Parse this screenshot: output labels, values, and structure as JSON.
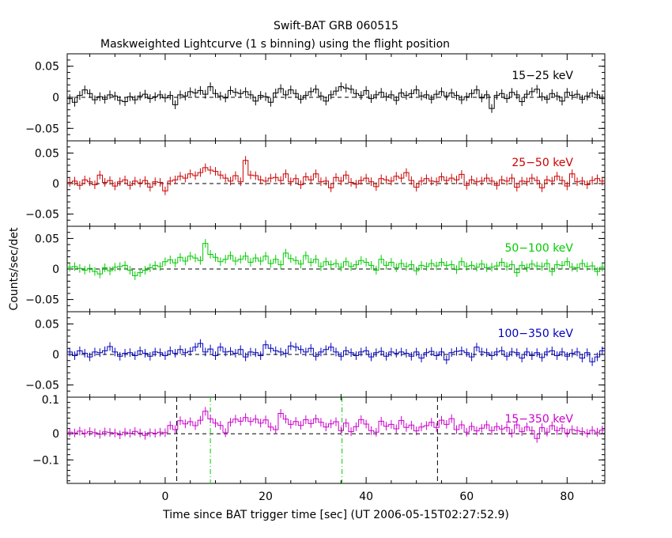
{
  "chart_data": {
    "type": "line",
    "title": "Swift-BAT GRB 060515",
    "subtitle": "Maskweighted Lightcurve (1 s binning) using the flight position",
    "xlabel": "Time since BAT trigger time [sec] (UT 2006-05-15T02:27:52.9)",
    "ylabel": "Counts/sec/det",
    "xlim": [
      -19.5,
      87.5
    ],
    "x_ticks": [
      0,
      20,
      40,
      60,
      80
    ],
    "x_tick_labels": [
      "0",
      "20",
      "40",
      "60",
      "80"
    ],
    "markers": [
      {
        "x": 2.3,
        "style": "dashed",
        "color": "#000000",
        "panel": 4
      },
      {
        "x": 54.2,
        "style": "dashed",
        "color": "#000000",
        "panel": 4
      },
      {
        "x": 9.0,
        "style": "dashdot",
        "color": "#00cc00",
        "panel": 4
      },
      {
        "x": 35.2,
        "style": "dashdot",
        "color": "#00cc00",
        "panel": 4
      }
    ],
    "panels": [
      {
        "name": "15-25 keV",
        "label": "15−25 keV",
        "color": "#000000",
        "ylim": [
          -0.07,
          0.07
        ],
        "ytick_values": [
          0.05,
          0,
          -0.05
        ],
        "ytick_labels": [
          "0.05",
          "0",
          "−0.05"
        ],
        "x": [
          -19,
          -18,
          -17,
          -16,
          -15,
          -14,
          -13,
          -12,
          -11,
          -10,
          -9,
          -8,
          -7,
          -6,
          -5,
          -4,
          -3,
          -2,
          -1,
          0,
          1,
          2,
          3,
          4,
          5,
          6,
          7,
          8,
          9,
          10,
          11,
          12,
          13,
          14,
          15,
          16,
          17,
          18,
          19,
          20,
          21,
          22,
          23,
          24,
          25,
          26,
          27,
          28,
          29,
          30,
          31,
          32,
          33,
          34,
          35,
          36,
          37,
          38,
          39,
          40,
          41,
          42,
          43,
          44,
          45,
          46,
          47,
          48,
          49,
          50,
          51,
          52,
          53,
          54,
          55,
          56,
          57,
          58,
          59,
          60,
          61,
          62,
          63,
          64,
          65,
          66,
          67,
          68,
          69,
          70,
          71,
          72,
          73,
          74,
          75,
          76,
          77,
          78,
          79,
          80,
          81,
          82,
          83,
          84,
          85,
          86,
          87
        ],
        "values": [
          -0.002,
          -0.008,
          0.003,
          0.012,
          0.006,
          -0.004,
          0.001,
          -0.003,
          0.004,
          0.002,
          -0.005,
          -0.007,
          0.001,
          -0.004,
          0.002,
          0.005,
          -0.002,
          0.001,
          0.004,
          -0.001,
          0.003,
          -0.012,
          0.004,
          0.002,
          0.009,
          0.007,
          0.011,
          0.005,
          0.017,
          0.006,
          0.002,
          -0.001,
          0.011,
          0.008,
          0.006,
          0.009,
          0.004,
          -0.006,
          0.003,
          0.001,
          -0.008,
          0.007,
          0.014,
          0.004,
          0.012,
          0.006,
          -0.003,
          0.003,
          0.009,
          0.013,
          0.002,
          -0.006,
          0.004,
          0.01,
          0.017,
          0.015,
          0.013,
          0.006,
          0.003,
          0.011,
          -0.002,
          0.004,
          0.008,
          0.001,
          0.004,
          -0.005,
          0.007,
          0.003,
          0.006,
          0.012,
          0.002,
          0.004,
          -0.003,
          0.005,
          0.009,
          0.002,
          0.007,
          0.003,
          -0.004,
          0.001,
          0.006,
          0.012,
          -0.001,
          0.004,
          -0.018,
          0.003,
          0.006,
          -0.002,
          0.008,
          0.004,
          -0.007,
          0.005,
          0.009,
          0.013,
          0.001,
          -0.003,
          0.006,
          0.002,
          -0.006,
          0.008,
          0.003,
          0.005,
          -0.003,
          0.002,
          0.007,
          0.004,
          -0.002
        ]
      },
      {
        "name": "25-50 keV",
        "label": "25−50 keV",
        "color": "#cc0000",
        "ylim": [
          -0.07,
          0.07
        ],
        "ytick_values": [
          0.05,
          0,
          -0.05
        ],
        "ytick_labels": [
          "0.05",
          "0",
          "−0.05"
        ],
        "x": [
          -19,
          -18,
          -17,
          -16,
          -15,
          -14,
          -13,
          -12,
          -11,
          -10,
          -9,
          -8,
          -7,
          -6,
          -5,
          -4,
          -3,
          -2,
          -1,
          0,
          1,
          2,
          3,
          4,
          5,
          6,
          7,
          8,
          9,
          10,
          11,
          12,
          13,
          14,
          15,
          16,
          17,
          18,
          19,
          20,
          21,
          22,
          23,
          24,
          25,
          26,
          27,
          28,
          29,
          30,
          31,
          32,
          33,
          34,
          35,
          36,
          37,
          38,
          39,
          40,
          41,
          42,
          43,
          44,
          45,
          46,
          47,
          48,
          49,
          50,
          51,
          52,
          53,
          54,
          55,
          56,
          57,
          58,
          59,
          60,
          61,
          62,
          63,
          64,
          65,
          66,
          67,
          68,
          69,
          70,
          71,
          72,
          73,
          74,
          75,
          76,
          77,
          78,
          79,
          80,
          81,
          82,
          83,
          84,
          85,
          86,
          87
        ],
        "values": [
          0.002,
          0.004,
          -0.003,
          0.006,
          0.003,
          -0.002,
          0.014,
          0.002,
          0.005,
          -0.004,
          0.003,
          0.006,
          -0.003,
          0.004,
          0.001,
          0.005,
          -0.006,
          0.003,
          0.002,
          -0.012,
          0.004,
          0.006,
          0.012,
          0.009,
          0.016,
          0.013,
          0.018,
          0.026,
          0.022,
          0.02,
          0.014,
          0.009,
          0.004,
          0.013,
          0.003,
          0.038,
          0.014,
          0.013,
          0.006,
          0.004,
          0.009,
          0.01,
          0.005,
          0.016,
          0.003,
          0.008,
          -0.002,
          0.011,
          0.006,
          0.016,
          0.003,
          0.004,
          -0.007,
          0.01,
          0.004,
          0.014,
          0.002,
          -0.001,
          0.005,
          0.009,
          0.003,
          -0.005,
          0.008,
          0.006,
          0.004,
          0.012,
          0.009,
          0.018,
          0.005,
          -0.006,
          0.004,
          0.008,
          0.004,
          0.003,
          0.011,
          0.005,
          0.009,
          0.006,
          0.015,
          -0.003,
          0.006,
          0.003,
          0.004,
          0.009,
          0.004,
          -0.003,
          0.006,
          0.004,
          0.009,
          -0.006,
          0.004,
          0.003,
          0.009,
          0.005,
          -0.007,
          0.006,
          0.004,
          0.012,
          0.005,
          -0.004,
          0.016,
          0.003,
          0.004,
          -0.002,
          0.005,
          0.008,
          0.004
        ]
      },
      {
        "name": "50-100 keV",
        "label": "50−100 keV",
        "color": "#00cc00",
        "ylim": [
          -0.07,
          0.07
        ],
        "ytick_values": [
          0.05,
          0,
          -0.05
        ],
        "ytick_labels": [
          "0.05",
          "0",
          "−0.05"
        ],
        "x": [
          -19,
          -18,
          -17,
          -16,
          -15,
          -14,
          -13,
          -12,
          -11,
          -10,
          -9,
          -8,
          -7,
          -6,
          -5,
          -4,
          -3,
          -2,
          -1,
          0,
          1,
          2,
          3,
          4,
          5,
          6,
          7,
          8,
          9,
          10,
          11,
          12,
          13,
          14,
          15,
          16,
          17,
          18,
          19,
          20,
          21,
          22,
          23,
          24,
          25,
          26,
          27,
          28,
          29,
          30,
          31,
          32,
          33,
          34,
          35,
          36,
          37,
          38,
          39,
          40,
          41,
          42,
          43,
          44,
          45,
          46,
          47,
          48,
          49,
          50,
          51,
          52,
          53,
          54,
          55,
          56,
          57,
          58,
          59,
          60,
          61,
          62,
          63,
          64,
          65,
          66,
          67,
          68,
          69,
          70,
          71,
          72,
          73,
          74,
          75,
          76,
          77,
          78,
          79,
          80,
          81,
          82,
          83,
          84,
          85,
          86,
          87
        ],
        "values": [
          0.003,
          0.004,
          0.001,
          -0.002,
          0.001,
          -0.004,
          -0.008,
          0.002,
          -0.003,
          0.003,
          0.004,
          0.006,
          -0.002,
          -0.011,
          -0.006,
          -0.002,
          0.002,
          0.006,
          0.004,
          0.012,
          0.015,
          0.01,
          0.019,
          0.013,
          0.021,
          0.018,
          0.014,
          0.042,
          0.024,
          0.019,
          0.012,
          0.016,
          0.022,
          0.013,
          0.016,
          0.021,
          0.011,
          0.018,
          0.013,
          0.021,
          0.009,
          0.016,
          0.007,
          0.026,
          0.017,
          0.014,
          0.008,
          0.022,
          0.011,
          0.016,
          0.004,
          0.012,
          0.007,
          0.009,
          0.003,
          0.012,
          0.004,
          0.007,
          0.014,
          0.011,
          0.006,
          -0.002,
          0.016,
          0.006,
          0.011,
          0.002,
          0.009,
          0.004,
          0.007,
          -0.003,
          0.006,
          0.004,
          0.009,
          0.005,
          0.011,
          0.006,
          0.007,
          -0.001,
          0.012,
          0.004,
          0.006,
          0.003,
          0.008,
          0.002,
          0.003,
          0.005,
          0.011,
          0.004,
          0.007,
          -0.006,
          0.006,
          0.002,
          0.008,
          0.005,
          0.004,
          0.009,
          -0.004,
          0.007,
          0.006,
          0.012,
          0.003,
          0.002,
          0.009,
          0.004,
          0.005,
          -0.004,
          0.003
        ]
      },
      {
        "name": "100-350 keV",
        "label": "100−350 keV",
        "color": "#0000bb",
        "ylim": [
          -0.07,
          0.07
        ],
        "ytick_values": [
          0.05,
          0,
          -0.05
        ],
        "ytick_labels": [
          "0.05",
          "0",
          "−0.05"
        ],
        "x": [
          -19,
          -18,
          -17,
          -16,
          -15,
          -14,
          -13,
          -12,
          -11,
          -10,
          -9,
          -8,
          -7,
          -6,
          -5,
          -4,
          -3,
          -2,
          -1,
          0,
          1,
          2,
          3,
          4,
          5,
          6,
          7,
          8,
          9,
          10,
          11,
          12,
          13,
          14,
          15,
          16,
          17,
          18,
          19,
          20,
          21,
          22,
          23,
          24,
          25,
          26,
          27,
          28,
          29,
          30,
          31,
          32,
          33,
          34,
          35,
          36,
          37,
          38,
          39,
          40,
          41,
          42,
          43,
          44,
          45,
          46,
          47,
          48,
          49,
          50,
          51,
          52,
          53,
          54,
          55,
          56,
          57,
          58,
          59,
          60,
          61,
          62,
          63,
          64,
          65,
          66,
          67,
          68,
          69,
          70,
          71,
          72,
          73,
          74,
          75,
          76,
          77,
          78,
          79,
          80,
          81,
          82,
          83,
          84,
          85,
          86,
          87
        ],
        "values": [
          0.004,
          -0.002,
          0.006,
          0.002,
          -0.004,
          0.004,
          0.003,
          0.006,
          0.013,
          0.004,
          -0.003,
          0.002,
          0.003,
          -0.002,
          0.006,
          0.002,
          -0.003,
          0.004,
          0.003,
          -0.002,
          0.006,
          0.002,
          0.008,
          0.003,
          0.005,
          0.012,
          0.018,
          0.004,
          0.009,
          -0.002,
          0.012,
          0.004,
          0.005,
          0.002,
          0.008,
          -0.004,
          0.004,
          0.003,
          -0.002,
          0.016,
          0.01,
          0.006,
          0.004,
          0.002,
          0.014,
          0.012,
          0.008,
          0.004,
          0.01,
          -0.003,
          0.004,
          0.008,
          0.012,
          0.004,
          -0.003,
          0.006,
          0.003,
          -0.002,
          0.004,
          0.006,
          -0.004,
          0.003,
          0.005,
          -0.003,
          0.004,
          0.002,
          0.004,
          0.002,
          -0.003,
          0.004,
          -0.006,
          0.003,
          0.005,
          -0.002,
          0.004,
          -0.009,
          0.003,
          0.005,
          0.006,
          0.003,
          -0.004,
          0.012,
          0.004,
          0.003,
          -0.002,
          0.004,
          0.006,
          -0.003,
          0.004,
          0.003,
          -0.006,
          0.004,
          -0.002,
          0.003,
          -0.005,
          0.004,
          0.006,
          -0.002,
          0.004,
          -0.003,
          0.002,
          0.004,
          -0.006,
          0.003,
          -0.012,
          -0.004,
          0.006
        ]
      },
      {
        "name": "15-350 keV",
        "label": "15−350 keV",
        "color": "#cc00cc",
        "ylim": [
          -0.19,
          0.14
        ],
        "ytick_values": [
          0,
          -0.1
        ],
        "ytick_labels": [
          "0",
          "−0.1"
        ],
        "ytick_top_label": "0.1",
        "x": [
          -19,
          -18,
          -17,
          -16,
          -15,
          -14,
          -13,
          -12,
          -11,
          -10,
          -9,
          -8,
          -7,
          -6,
          -5,
          -4,
          -3,
          -2,
          -1,
          0,
          1,
          2,
          3,
          4,
          5,
          6,
          7,
          8,
          9,
          10,
          11,
          12,
          13,
          14,
          15,
          16,
          17,
          18,
          19,
          20,
          21,
          22,
          23,
          24,
          25,
          26,
          27,
          28,
          29,
          30,
          31,
          32,
          33,
          34,
          35,
          36,
          37,
          38,
          39,
          40,
          41,
          42,
          43,
          44,
          45,
          46,
          47,
          48,
          49,
          50,
          51,
          52,
          53,
          54,
          55,
          56,
          57,
          58,
          59,
          60,
          61,
          62,
          63,
          64,
          65,
          66,
          67,
          68,
          69,
          70,
          71,
          72,
          73,
          74,
          75,
          76,
          77,
          78,
          79,
          80,
          81,
          82,
          83,
          84,
          85,
          86,
          87
        ],
        "values": [
          0.006,
          0.003,
          0.01,
          0.002,
          0.008,
          0.004,
          -0.002,
          0.007,
          0.005,
          0.003,
          -0.004,
          0.006,
          0.002,
          0.009,
          0.003,
          -0.006,
          0.004,
          0.002,
          0.006,
          0.004,
          0.032,
          0.016,
          0.05,
          0.038,
          0.046,
          0.031,
          0.052,
          0.086,
          0.057,
          0.041,
          0.032,
          0.004,
          0.044,
          0.056,
          0.048,
          0.062,
          0.047,
          0.056,
          0.041,
          0.053,
          0.026,
          0.016,
          0.078,
          0.056,
          0.036,
          0.047,
          0.032,
          0.054,
          0.039,
          0.057,
          0.044,
          0.026,
          0.038,
          0.046,
          0.012,
          0.041,
          0.008,
          0.027,
          0.054,
          0.037,
          0.012,
          0.006,
          0.048,
          0.029,
          0.036,
          0.019,
          0.051,
          0.024,
          0.033,
          0.011,
          0.026,
          0.031,
          0.044,
          0.024,
          0.052,
          0.036,
          0.058,
          0.016,
          0.034,
          0.006,
          0.028,
          0.011,
          0.021,
          0.034,
          0.012,
          0.027,
          0.018,
          0.024,
          0.002,
          0.034,
          0.008,
          0.026,
          0.012,
          -0.018,
          0.023,
          0.006,
          0.031,
          0.012,
          0.021,
          0.003,
          0.016,
          0.012,
          0.008,
          0.002,
          0.013,
          0.006,
          0.014
        ]
      }
    ]
  }
}
